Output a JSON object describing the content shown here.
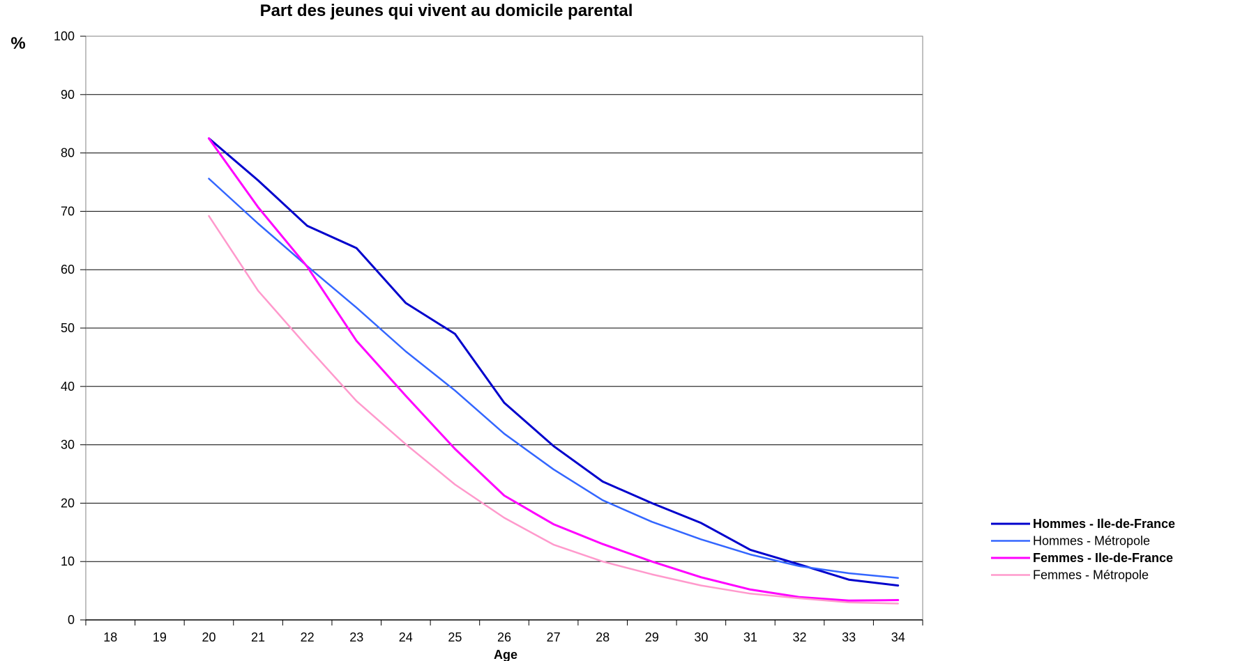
{
  "chart_data": {
    "type": "line",
    "title": "Part des jeunes qui vivent au domicile parental",
    "xlabel": "Age",
    "ylabel": "%",
    "categories": [
      "18",
      "19",
      "20",
      "21",
      "22",
      "23",
      "24",
      "25",
      "26",
      "27",
      "28",
      "29",
      "30",
      "31",
      "32",
      "33",
      "34"
    ],
    "yticks": [
      "0",
      "10",
      "20",
      "30",
      "40",
      "50",
      "60",
      "70",
      "80",
      "90",
      "100"
    ],
    "ylim": [
      0,
      100
    ],
    "grid": true,
    "legend_position": "right",
    "series": [
      {
        "name": "Hommes - Ile-de-France",
        "color": "#0000CC",
        "bold": true,
        "values": [
          null,
          null,
          82.5,
          75.3,
          67.5,
          63.7,
          54.3,
          49.0,
          37.2,
          29.8,
          23.7,
          20.0,
          16.6,
          12.0,
          9.5,
          6.9,
          5.9
        ]
      },
      {
        "name": "Hommes - Métropole",
        "color": "#3366FF",
        "bold": false,
        "values": [
          null,
          null,
          75.6,
          67.9,
          60.6,
          53.5,
          46.0,
          39.3,
          31.9,
          25.8,
          20.5,
          16.8,
          13.8,
          11.2,
          9.2,
          8.0,
          7.2
        ]
      },
      {
        "name": "Femmes - Ile-de-France",
        "color": "#FF00FF",
        "bold": true,
        "values": [
          null,
          null,
          82.5,
          70.7,
          60.5,
          47.8,
          38.4,
          29.3,
          21.3,
          16.4,
          13.0,
          10.0,
          7.3,
          5.2,
          3.9,
          3.3,
          3.4
        ]
      },
      {
        "name": "Femmes - Métropole",
        "color": "#FF99CC",
        "bold": false,
        "values": [
          null,
          null,
          69.2,
          56.4,
          46.8,
          37.5,
          30.1,
          23.2,
          17.5,
          12.9,
          10.0,
          7.8,
          5.9,
          4.5,
          3.7,
          3.0,
          2.8
        ]
      }
    ]
  }
}
